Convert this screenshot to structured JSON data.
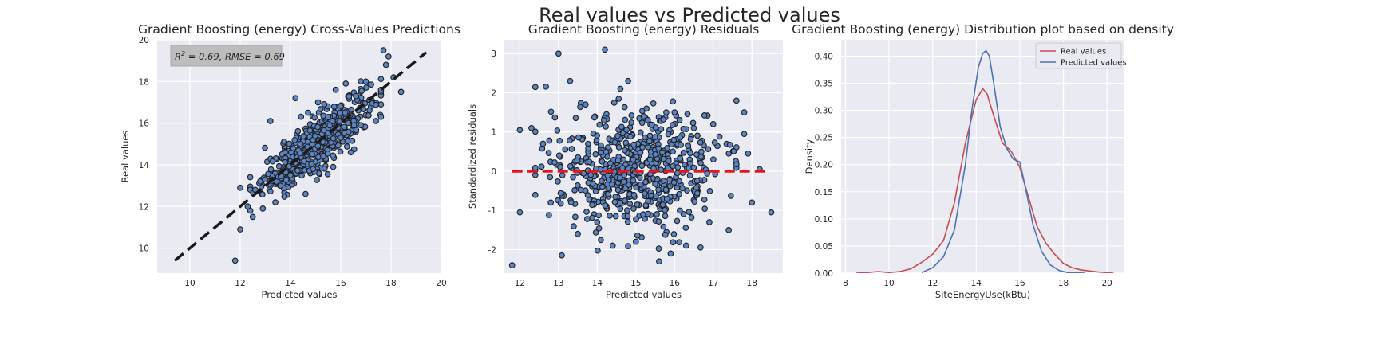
{
  "suptitle": "Real values vs Predicted values",
  "chart_data": [
    {
      "type": "scatter",
      "title": "Gradient Boosting (energy) Cross-Values Predictions",
      "xlabel": "Predicted values",
      "ylabel": "Real values",
      "xlim": [
        8.7,
        20
      ],
      "ylim": [
        8.8,
        20
      ],
      "xticks": [
        10,
        12,
        14,
        16,
        18,
        20
      ],
      "yticks": [
        10,
        12,
        14,
        16,
        18,
        20
      ],
      "grid": true,
      "annotation": {
        "prefix": "R",
        "sup": "2",
        "suffix": " = 0.69, RMSE = 0.69"
      },
      "reference_line": {
        "x": [
          9.4,
          19.4
        ],
        "y": [
          9.4,
          19.4
        ],
        "color": "#1a1a1a",
        "style": "dashed"
      },
      "point_color": "#5b84c4",
      "points": [
        [
          11.8,
          9.4
        ],
        [
          12.0,
          10.9
        ],
        [
          12.0,
          12.9
        ],
        [
          12.3,
          12.0
        ],
        [
          12.5,
          11.5
        ],
        [
          12.6,
          12.8
        ],
        [
          12.9,
          11.9
        ],
        [
          13.0,
          13.3
        ],
        [
          13.2,
          16.1
        ],
        [
          13.4,
          12.2
        ],
        [
          13.6,
          13.0
        ],
        [
          13.8,
          14.6
        ],
        [
          14.0,
          13.5
        ],
        [
          14.2,
          17.2
        ],
        [
          14.4,
          15.0
        ],
        [
          14.6,
          12.6
        ],
        [
          14.7,
          16.5
        ],
        [
          14.9,
          13.8
        ],
        [
          15.1,
          17.0
        ],
        [
          15.3,
          14.4
        ],
        [
          15.5,
          16.3
        ],
        [
          15.7,
          13.9
        ],
        [
          15.8,
          17.6
        ],
        [
          16.0,
          15.3
        ],
        [
          16.2,
          17.9
        ],
        [
          16.4,
          14.6
        ],
        [
          16.6,
          17.3
        ],
        [
          16.8,
          15.9
        ],
        [
          17.0,
          18.0
        ],
        [
          17.4,
          16.1
        ],
        [
          17.6,
          17.6
        ],
        [
          17.8,
          18.8
        ],
        [
          17.7,
          19.5
        ],
        [
          17.9,
          19.2
        ],
        [
          18.1,
          18.2
        ],
        [
          18.4,
          17.5
        ]
      ],
      "cloud": {
        "n": 560,
        "x_mean": 15.0,
        "x_sd": 1.05,
        "slope": 0.93,
        "noise_sd": 0.62,
        "x_min": 12.4,
        "x_max": 17.6
      }
    },
    {
      "type": "scatter",
      "title": "Gradient Boosting (energy) Residuals",
      "xlabel": "Predicted values",
      "ylabel": "Standardized residuals",
      "xlim": [
        11.6,
        18.8
      ],
      "ylim": [
        -2.6,
        3.35
      ],
      "xticks": [
        12,
        13,
        14,
        15,
        16,
        17,
        18
      ],
      "yticks": [
        -2,
        -1,
        0,
        1,
        2,
        3
      ],
      "grid": true,
      "reference_line": {
        "y": 0,
        "x": [
          11.8,
          18.4
        ],
        "color": "#e8141b",
        "style": "dashed"
      },
      "point_color": "#5b84c4",
      "points": [
        [
          11.8,
          -2.4
        ],
        [
          12.0,
          1.05
        ],
        [
          12.0,
          -1.05
        ],
        [
          12.3,
          1.1
        ],
        [
          12.6,
          0.7
        ],
        [
          12.8,
          -0.8
        ],
        [
          13.0,
          3.0
        ],
        [
          13.3,
          2.3
        ],
        [
          13.5,
          -1.6
        ],
        [
          13.7,
          1.7
        ],
        [
          14.0,
          -1.3
        ],
        [
          14.2,
          3.1
        ],
        [
          14.4,
          -1.9
        ],
        [
          14.6,
          2.1
        ],
        [
          14.8,
          2.3
        ],
        [
          15.0,
          -1.8
        ],
        [
          15.2,
          1.4
        ],
        [
          15.6,
          -2.3
        ],
        [
          15.9,
          -2.1
        ],
        [
          16.0,
          1.5
        ],
        [
          16.3,
          -1.9
        ],
        [
          16.5,
          1.1
        ],
        [
          16.9,
          -1.3
        ],
        [
          17.0,
          1.2
        ],
        [
          17.4,
          -1.5
        ],
        [
          17.6,
          1.8
        ],
        [
          17.8,
          1.5
        ],
        [
          17.8,
          0.95
        ],
        [
          17.9,
          0.45
        ],
        [
          18.0,
          -0.8
        ],
        [
          18.2,
          0.05
        ],
        [
          18.5,
          -1.05
        ]
      ],
      "cloud": {
        "n": 600,
        "x_mean": 15.0,
        "x_sd": 1.05,
        "res_sd": 0.75,
        "x_min": 12.4,
        "x_max": 17.6
      }
    },
    {
      "type": "line",
      "title": "Gradient Boosting (energy) Distribution plot based on density",
      "xlabel": "SiteEnergyUse(kBtu)",
      "ylabel": "Density",
      "xlim": [
        7.8,
        20.8
      ],
      "ylim": [
        0,
        0.43
      ],
      "xticks": [
        8,
        10,
        12,
        14,
        16,
        18,
        20
      ],
      "yticks": [
        0.0,
        0.05,
        0.1,
        0.15,
        0.2,
        0.25,
        0.3,
        0.35,
        0.4
      ],
      "grid": true,
      "legend_position": "top-right",
      "series": [
        {
          "name": "Real values",
          "color": "#c44e52",
          "x": [
            8.5,
            9.0,
            9.5,
            10.0,
            10.5,
            11.0,
            11.5,
            12.0,
            12.5,
            13.0,
            13.5,
            14.0,
            14.3,
            14.5,
            14.8,
            15.2,
            15.6,
            16.0,
            16.4,
            16.8,
            17.2,
            17.6,
            18.0,
            18.4,
            18.8,
            19.2,
            19.6,
            20.0,
            20.3
          ],
          "y": [
            0.0,
            0.001,
            0.003,
            0.001,
            0.003,
            0.008,
            0.02,
            0.035,
            0.06,
            0.13,
            0.24,
            0.32,
            0.34,
            0.33,
            0.29,
            0.24,
            0.225,
            0.195,
            0.14,
            0.085,
            0.055,
            0.035,
            0.018,
            0.01,
            0.006,
            0.004,
            0.002,
            0.001,
            0.0
          ]
        },
        {
          "name": "Predicted values",
          "color": "#4c72b0",
          "x": [
            11.5,
            12.0,
            12.5,
            13.0,
            13.5,
            13.8,
            14.1,
            14.3,
            14.45,
            14.6,
            14.8,
            15.1,
            15.4,
            15.7,
            16.0,
            16.3,
            16.6,
            17.0,
            17.4,
            17.8,
            18.2,
            18.6,
            19.0
          ],
          "y": [
            0.001,
            0.01,
            0.03,
            0.08,
            0.2,
            0.3,
            0.38,
            0.405,
            0.41,
            0.4,
            0.35,
            0.27,
            0.23,
            0.21,
            0.205,
            0.15,
            0.09,
            0.04,
            0.015,
            0.005,
            0.001,
            0.0005,
            0.0
          ]
        }
      ]
    }
  ]
}
